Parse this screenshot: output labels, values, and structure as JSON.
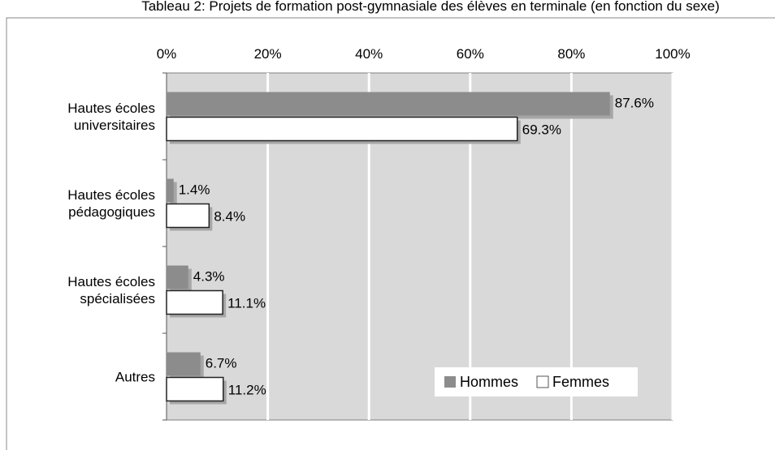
{
  "chart_data": {
    "type": "bar",
    "orientation": "horizontal",
    "title": "Tableau 2: Projets de formation post-gymnasiale des élèves en terminale (en fonction du sexe)",
    "categories": [
      [
        "Hautes écoles",
        "universitaires"
      ],
      [
        "Hautes écoles",
        "pédagogiques"
      ],
      [
        "Hautes écoles",
        "spécialisées"
      ],
      [
        "Autres"
      ]
    ],
    "series": [
      {
        "name": "Hommes",
        "color": "#8c8c8c",
        "values": [
          87.6,
          1.4,
          4.3,
          6.7
        ],
        "labels": [
          "87.6%",
          "1.4%",
          "4.3%",
          "6.7%"
        ]
      },
      {
        "name": "Femmes",
        "color": "#ffffff",
        "values": [
          69.3,
          8.4,
          11.1,
          11.2
        ],
        "labels": [
          "69.3%",
          "8.4%",
          "11.1%",
          "11.2%"
        ]
      }
    ],
    "xlim": [
      0,
      100
    ],
    "x_ticks": [
      "0%",
      "20%",
      "40%",
      "60%",
      "80%",
      "100%"
    ],
    "x_tick_values": [
      0,
      20,
      40,
      60,
      80,
      100
    ],
    "axis_position": "top",
    "grid": true,
    "plot_background": "#d9d9d9",
    "legend_position": "bottom-right"
  }
}
